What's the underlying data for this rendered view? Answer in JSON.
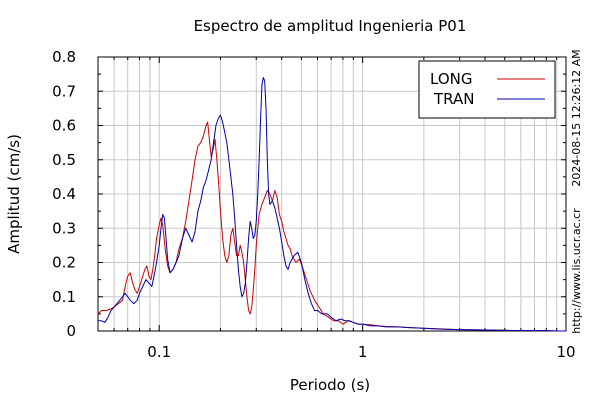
{
  "chart_data": {
    "type": "line",
    "title": "Espectro de amplitud Ingenieria P01",
    "xlabel": "Periodo (s)",
    "ylabel": "Amplitud (cm/s)",
    "x_scale": "log",
    "xlim": [
      0.05,
      10
    ],
    "ylim": [
      0,
      0.8
    ],
    "x_ticks": [
      {
        "value": 0.1,
        "label": "0.1"
      },
      {
        "value": 1,
        "label": "1"
      },
      {
        "value": 10,
        "label": "10"
      }
    ],
    "y_ticks": [
      {
        "value": 0,
        "label": "0"
      },
      {
        "value": 0.1,
        "label": "0.1"
      },
      {
        "value": 0.2,
        "label": "0.2"
      },
      {
        "value": 0.3,
        "label": "0.3"
      },
      {
        "value": 0.4,
        "label": "0.4"
      },
      {
        "value": 0.5,
        "label": "0.5"
      },
      {
        "value": 0.6,
        "label": "0.6"
      },
      {
        "value": 0.7,
        "label": "0.7"
      },
      {
        "value": 0.8,
        "label": "0.8"
      }
    ],
    "grid": true,
    "legend_position": "top-right",
    "series": [
      {
        "name": "LONG",
        "color": "#cc0000",
        "points": [
          [
            0.05,
            0.05
          ],
          [
            0.052,
            0.06
          ],
          [
            0.055,
            0.06
          ],
          [
            0.058,
            0.065
          ],
          [
            0.06,
            0.07
          ],
          [
            0.063,
            0.08
          ],
          [
            0.066,
            0.09
          ],
          [
            0.068,
            0.13
          ],
          [
            0.07,
            0.16
          ],
          [
            0.072,
            0.17
          ],
          [
            0.074,
            0.14
          ],
          [
            0.076,
            0.12
          ],
          [
            0.078,
            0.11
          ],
          [
            0.08,
            0.13
          ],
          [
            0.082,
            0.15
          ],
          [
            0.085,
            0.18
          ],
          [
            0.087,
            0.19
          ],
          [
            0.089,
            0.16
          ],
          [
            0.091,
            0.15
          ],
          [
            0.093,
            0.18
          ],
          [
            0.095,
            0.22
          ],
          [
            0.097,
            0.27
          ],
          [
            0.1,
            0.31
          ],
          [
            0.102,
            0.33
          ],
          [
            0.104,
            0.31
          ],
          [
            0.107,
            0.24
          ],
          [
            0.11,
            0.19
          ],
          [
            0.113,
            0.17
          ],
          [
            0.117,
            0.18
          ],
          [
            0.121,
            0.2
          ],
          [
            0.125,
            0.24
          ],
          [
            0.13,
            0.27
          ],
          [
            0.135,
            0.32
          ],
          [
            0.14,
            0.38
          ],
          [
            0.145,
            0.44
          ],
          [
            0.15,
            0.5
          ],
          [
            0.155,
            0.54
          ],
          [
            0.16,
            0.55
          ],
          [
            0.165,
            0.57
          ],
          [
            0.17,
            0.6
          ],
          [
            0.173,
            0.61
          ],
          [
            0.177,
            0.55
          ],
          [
            0.18,
            0.51
          ],
          [
            0.184,
            0.53
          ],
          [
            0.188,
            0.56
          ],
          [
            0.192,
            0.5
          ],
          [
            0.196,
            0.43
          ],
          [
            0.2,
            0.35
          ],
          [
            0.205,
            0.27
          ],
          [
            0.21,
            0.22
          ],
          [
            0.215,
            0.2
          ],
          [
            0.22,
            0.22
          ],
          [
            0.225,
            0.28
          ],
          [
            0.23,
            0.3
          ],
          [
            0.235,
            0.26
          ],
          [
            0.24,
            0.22
          ],
          [
            0.245,
            0.22
          ],
          [
            0.25,
            0.25
          ],
          [
            0.255,
            0.23
          ],
          [
            0.26,
            0.2
          ],
          [
            0.265,
            0.15
          ],
          [
            0.27,
            0.1
          ],
          [
            0.275,
            0.06
          ],
          [
            0.28,
            0.05
          ],
          [
            0.285,
            0.07
          ],
          [
            0.29,
            0.12
          ],
          [
            0.295,
            0.18
          ],
          [
            0.3,
            0.25
          ],
          [
            0.305,
            0.3
          ],
          [
            0.31,
            0.34
          ],
          [
            0.32,
            0.37
          ],
          [
            0.33,
            0.39
          ],
          [
            0.34,
            0.41
          ],
          [
            0.35,
            0.4
          ],
          [
            0.36,
            0.38
          ],
          [
            0.37,
            0.41
          ],
          [
            0.38,
            0.39
          ],
          [
            0.39,
            0.34
          ],
          [
            0.4,
            0.32
          ],
          [
            0.41,
            0.29
          ],
          [
            0.42,
            0.27
          ],
          [
            0.43,
            0.25
          ],
          [
            0.44,
            0.24
          ],
          [
            0.45,
            0.22
          ],
          [
            0.47,
            0.2
          ],
          [
            0.49,
            0.21
          ],
          [
            0.51,
            0.18
          ],
          [
            0.53,
            0.15
          ],
          [
            0.55,
            0.12
          ],
          [
            0.58,
            0.09
          ],
          [
            0.61,
            0.07
          ],
          [
            0.64,
            0.05
          ],
          [
            0.68,
            0.04
          ],
          [
            0.72,
            0.03
          ],
          [
            0.76,
            0.03
          ],
          [
            0.8,
            0.02
          ],
          [
            0.85,
            0.03
          ],
          [
            0.9,
            0.025
          ],
          [
            0.95,
            0.02
          ],
          [
            1.0,
            0.02
          ],
          [
            1.1,
            0.018
          ],
          [
            1.2,
            0.015
          ],
          [
            1.3,
            0.013
          ],
          [
            1.5,
            0.012
          ],
          [
            1.7,
            0.01
          ],
          [
            2.0,
            0.008
          ],
          [
            2.5,
            0.006
          ],
          [
            3.0,
            0.004
          ],
          [
            4.0,
            0.003
          ],
          [
            5.0,
            0.002
          ],
          [
            6.0,
            0.001
          ],
          [
            7.0,
            0.001
          ],
          [
            8.0,
            0.001
          ],
          [
            9.0,
            0.0
          ],
          [
            10.0,
            0.0
          ]
        ]
      },
      {
        "name": "TRAN",
        "color": "#0000aa",
        "points": [
          [
            0.05,
            0.03
          ],
          [
            0.052,
            0.03
          ],
          [
            0.054,
            0.025
          ],
          [
            0.056,
            0.04
          ],
          [
            0.058,
            0.06
          ],
          [
            0.06,
            0.07
          ],
          [
            0.062,
            0.08
          ],
          [
            0.064,
            0.09
          ],
          [
            0.066,
            0.1
          ],
          [
            0.068,
            0.11
          ],
          [
            0.07,
            0.1
          ],
          [
            0.072,
            0.09
          ],
          [
            0.075,
            0.08
          ],
          [
            0.078,
            0.09
          ],
          [
            0.08,
            0.11
          ],
          [
            0.083,
            0.13
          ],
          [
            0.086,
            0.15
          ],
          [
            0.089,
            0.14
          ],
          [
            0.092,
            0.13
          ],
          [
            0.095,
            0.17
          ],
          [
            0.097,
            0.2
          ],
          [
            0.1,
            0.25
          ],
          [
            0.102,
            0.3
          ],
          [
            0.104,
            0.34
          ],
          [
            0.106,
            0.33
          ],
          [
            0.108,
            0.27
          ],
          [
            0.11,
            0.21
          ],
          [
            0.113,
            0.17
          ],
          [
            0.117,
            0.18
          ],
          [
            0.121,
            0.2
          ],
          [
            0.125,
            0.22
          ],
          [
            0.13,
            0.27
          ],
          [
            0.135,
            0.3
          ],
          [
            0.14,
            0.28
          ],
          [
            0.145,
            0.26
          ],
          [
            0.15,
            0.29
          ],
          [
            0.155,
            0.35
          ],
          [
            0.16,
            0.38
          ],
          [
            0.165,
            0.42
          ],
          [
            0.17,
            0.44
          ],
          [
            0.175,
            0.47
          ],
          [
            0.18,
            0.5
          ],
          [
            0.185,
            0.55
          ],
          [
            0.19,
            0.6
          ],
          [
            0.195,
            0.62
          ],
          [
            0.2,
            0.63
          ],
          [
            0.205,
            0.61
          ],
          [
            0.21,
            0.58
          ],
          [
            0.215,
            0.55
          ],
          [
            0.22,
            0.5
          ],
          [
            0.225,
            0.45
          ],
          [
            0.23,
            0.4
          ],
          [
            0.235,
            0.33
          ],
          [
            0.24,
            0.25
          ],
          [
            0.245,
            0.18
          ],
          [
            0.25,
            0.13
          ],
          [
            0.255,
            0.1
          ],
          [
            0.26,
            0.11
          ],
          [
            0.265,
            0.14
          ],
          [
            0.27,
            0.2
          ],
          [
            0.275,
            0.27
          ],
          [
            0.28,
            0.32
          ],
          [
            0.285,
            0.3
          ],
          [
            0.29,
            0.27
          ],
          [
            0.295,
            0.28
          ],
          [
            0.3,
            0.32
          ],
          [
            0.305,
            0.4
          ],
          [
            0.31,
            0.5
          ],
          [
            0.315,
            0.62
          ],
          [
            0.32,
            0.72
          ],
          [
            0.325,
            0.74
          ],
          [
            0.33,
            0.73
          ],
          [
            0.335,
            0.65
          ],
          [
            0.34,
            0.5
          ],
          [
            0.345,
            0.4
          ],
          [
            0.35,
            0.37
          ],
          [
            0.36,
            0.38
          ],
          [
            0.37,
            0.36
          ],
          [
            0.38,
            0.33
          ],
          [
            0.39,
            0.3
          ],
          [
            0.4,
            0.26
          ],
          [
            0.41,
            0.22
          ],
          [
            0.42,
            0.19
          ],
          [
            0.43,
            0.18
          ],
          [
            0.44,
            0.2
          ],
          [
            0.46,
            0.22
          ],
          [
            0.48,
            0.23
          ],
          [
            0.5,
            0.2
          ],
          [
            0.52,
            0.15
          ],
          [
            0.54,
            0.11
          ],
          [
            0.56,
            0.08
          ],
          [
            0.58,
            0.06
          ],
          [
            0.6,
            0.06
          ],
          [
            0.63,
            0.05
          ],
          [
            0.67,
            0.05
          ],
          [
            0.7,
            0.04
          ],
          [
            0.74,
            0.03
          ],
          [
            0.78,
            0.035
          ],
          [
            0.82,
            0.03
          ],
          [
            0.86,
            0.03
          ],
          [
            0.9,
            0.025
          ],
          [
            0.95,
            0.02
          ],
          [
            1.0,
            0.02
          ],
          [
            1.1,
            0.015
          ],
          [
            1.2,
            0.015
          ],
          [
            1.3,
            0.012
          ],
          [
            1.5,
            0.012
          ],
          [
            1.7,
            0.01
          ],
          [
            2.0,
            0.008
          ],
          [
            2.5,
            0.005
          ],
          [
            3.0,
            0.004
          ],
          [
            4.0,
            0.003
          ],
          [
            5.0,
            0.002
          ],
          [
            6.0,
            0.001
          ],
          [
            7.0,
            0.001
          ],
          [
            8.0,
            0.001
          ],
          [
            9.0,
            0.0
          ],
          [
            10.0,
            0.0
          ]
        ]
      }
    ],
    "annotations": {
      "timestamp": "2024-08-15 12:26:12 AM",
      "url": "http://www.lis.ucr.ac.cr"
    }
  }
}
